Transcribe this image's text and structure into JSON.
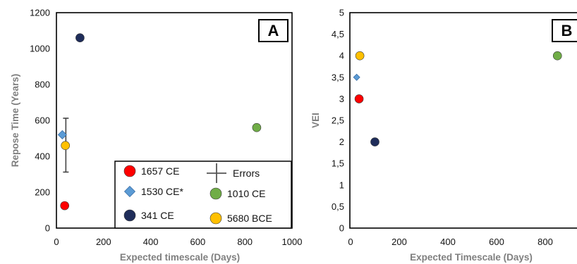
{
  "chart_data": [
    {
      "type": "scatter",
      "panel_label": "A",
      "xlabel": "Expected timescale (Days)",
      "ylabel": "Repose Time (Years)",
      "xlim": [
        0,
        1000
      ],
      "ylim": [
        0,
        1200
      ],
      "xticks": [
        0,
        200,
        400,
        600,
        800,
        1000
      ],
      "yticks": [
        0,
        200,
        400,
        600,
        800,
        1000,
        1200
      ],
      "grid": false,
      "legend_position": "bottom-right",
      "series": [
        {
          "name": "1657 CE",
          "color": "#ff0000",
          "marker": "circle",
          "points": [
            [
              35,
              125
            ]
          ]
        },
        {
          "name": "1530 CE*",
          "color": "#5b9bd5",
          "marker": "diamond",
          "points": [
            [
              25,
              520
            ]
          ]
        },
        {
          "name": "341 CE",
          "color": "#1f2d5a",
          "marker": "circle",
          "points": [
            [
              100,
              1060
            ]
          ]
        },
        {
          "name": "1010 CE",
          "color": "#70ad47",
          "marker": "circle",
          "points": [
            [
              850,
              560
            ]
          ]
        },
        {
          "name": "5680 BCE",
          "color": "#ffc000",
          "marker": "circle",
          "points": [
            [
              38,
              460
            ]
          ]
        }
      ],
      "errors": {
        "x": 40,
        "y": 462,
        "y_error": 150
      },
      "legend": {
        "errors_label": "Errors"
      }
    },
    {
      "type": "scatter",
      "panel_label": "B",
      "xlabel": "Expected Timescale (Days)",
      "ylabel": "VEI",
      "xlim": [
        0,
        1000
      ],
      "ylim": [
        0,
        5
      ],
      "xticks": [
        0,
        200,
        400,
        600,
        800
      ],
      "yticks": [
        0,
        0.5,
        1,
        1.5,
        2,
        2.5,
        3,
        3.5,
        4,
        4.5,
        5
      ],
      "ytick_labels": [
        "0",
        "0,5",
        "1",
        "1,5",
        "2",
        "2,5",
        "3",
        "3,5",
        "4",
        "4,5",
        "5"
      ],
      "grid": false,
      "series": [
        {
          "name": "1657 CE",
          "color": "#ff0000",
          "marker": "circle",
          "points": [
            [
              35,
              3
            ]
          ]
        },
        {
          "name": "1530 CE*",
          "color": "#5b9bd5",
          "marker": "diamond",
          "points": [
            [
              25,
              3.5
            ]
          ]
        },
        {
          "name": "341 CE",
          "color": "#1f2d5a",
          "marker": "circle",
          "points": [
            [
              100,
              2
            ]
          ]
        },
        {
          "name": "1010 CE",
          "color": "#70ad47",
          "marker": "circle",
          "points": [
            [
              850,
              4
            ]
          ]
        },
        {
          "name": "5680 BCE",
          "color": "#ffc000",
          "marker": "circle",
          "points": [
            [
              38,
              4
            ]
          ]
        }
      ]
    }
  ]
}
